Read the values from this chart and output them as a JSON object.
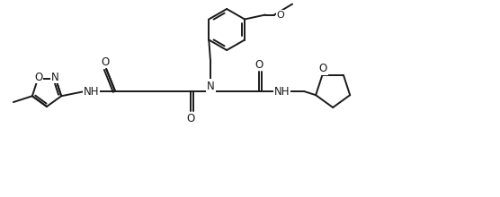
{
  "background_color": "#ffffff",
  "line_color": "#1a1a1a",
  "line_width": 1.4,
  "font_size": 8.5,
  "figsize": [
    5.56,
    2.2
  ],
  "dpi": 100,
  "xlim": [
    0,
    556
  ],
  "ylim": [
    0,
    220
  ]
}
